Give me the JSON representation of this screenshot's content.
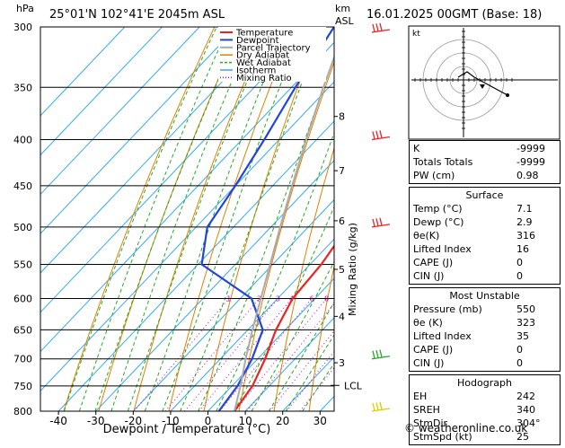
{
  "header": {
    "units": "hPa",
    "location": "25°01'N 102°41'E 2045m ASL",
    "km_label": "km",
    "asl_label": "ASL",
    "datetime": "16.01.2025 00GMT (Base: 18)"
  },
  "chart_data": {
    "type": "line",
    "title": "25°01'N 102°41'E 2045m ASL",
    "xlabel": "Dewpoint / Temperature (°C)",
    "ylabel": "hPa",
    "y2label": "Mixing Ratio (g/kg)",
    "xlim": [
      -45,
      35
    ],
    "ylim": [
      800,
      300
    ],
    "x_ticks": [
      "-40",
      "-30",
      "-20",
      "-10",
      "0",
      "10",
      "20",
      "30"
    ],
    "pressure_ticks": [
      "300",
      "350",
      "400",
      "450",
      "500",
      "550",
      "600",
      "650",
      "700",
      "750",
      "800"
    ],
    "pressure_values": [
      300,
      350,
      400,
      450,
      500,
      550,
      600,
      650,
      700,
      750,
      800
    ],
    "km_ticks": [
      {
        "p": 377,
        "label": "8"
      },
      {
        "p": 433,
        "label": "7"
      },
      {
        "p": 492,
        "label": "6"
      },
      {
        "p": 557,
        "label": "5"
      },
      {
        "p": 628,
        "label": "4"
      },
      {
        "p": 707,
        "label": "3"
      }
    ],
    "lcl": {
      "p": 749,
      "label": "LCL"
    },
    "mixing_ratio_labels": [
      {
        "r": 1,
        "label": "1"
      },
      {
        "r": 2,
        "label": "2"
      },
      {
        "r": 3,
        "label": "3"
      },
      {
        "r": 4,
        "label": "4"
      },
      {
        "r": 6,
        "label": "6"
      },
      {
        "r": 8,
        "label": "8"
      },
      {
        "r": 10,
        "label": "10"
      },
      {
        "r": 15,
        "label": "15"
      },
      {
        "r": 20,
        "label": "20"
      },
      {
        "r": 25,
        "label": "25"
      }
    ],
    "legend": [
      "Temperature",
      "Dewpoint",
      "Parcel Trajectory",
      "Dry Adiabat",
      "Wet Adiabat",
      "Isotherm",
      "Mixing Ratio"
    ],
    "legend_position": "top-left",
    "colors": {
      "temperature": "#ee2222",
      "dewpoint": "#2244dd",
      "parcel": "#aaaaaa",
      "dry": "#e08000",
      "wet": "#22aa22",
      "isotherm": "#33aaee",
      "mixing": "#cc00cc"
    },
    "series": [
      {
        "name": "Temperature",
        "points": [
          [
            800,
            7.1
          ],
          [
            750,
            5.5
          ],
          [
            700,
            2.0
          ],
          [
            650,
            -2.5
          ],
          [
            600,
            -6.0
          ],
          [
            550,
            -7.0
          ],
          [
            500,
            -9.5
          ],
          [
            450,
            -15.5
          ],
          [
            400,
            -23.0
          ],
          [
            350,
            -33.0
          ],
          [
            300,
            -41.0
          ]
        ]
      },
      {
        "name": "Dewpoint",
        "points": [
          [
            800,
            2.9
          ],
          [
            750,
            1.5
          ],
          [
            700,
            -1.5
          ],
          [
            650,
            -6.0
          ],
          [
            600,
            -17.0
          ],
          [
            550,
            -39.0
          ],
          [
            500,
            -47.0
          ],
          [
            450,
            -50.0
          ],
          [
            400,
            -54.0
          ],
          [
            350,
            -59.0
          ],
          [
            300,
            -64.0
          ]
        ]
      },
      {
        "name": "Parcel Trajectory",
        "points": [
          [
            800,
            7.1
          ],
          [
            750,
            2.3
          ],
          [
            700,
            -3.2
          ],
          [
            650,
            -8.8
          ],
          [
            600,
            -14.5
          ],
          [
            550,
            -20.7
          ],
          [
            500,
            -27.5
          ],
          [
            450,
            -34.8
          ],
          [
            400,
            -42.8
          ],
          [
            350,
            -51.5
          ],
          [
            300,
            -61.0
          ]
        ]
      }
    ]
  },
  "hodograph": {
    "label": "kt"
  },
  "winds": [
    {
      "p": 300,
      "color": "#ee2222"
    },
    {
      "p": 400,
      "color": "#ee2222"
    },
    {
      "p": 500,
      "color": "#ee2222"
    },
    {
      "p": 700,
      "color": "#22aa22"
    },
    {
      "p": 800,
      "color": "#ddcc00"
    }
  ],
  "indices": {
    "k_label": "K",
    "k": "-9999",
    "tt_label": "Totals Totals",
    "tt": "-9999",
    "pw_label": "PW (cm)",
    "pw": "0.98"
  },
  "surface": {
    "title": "Surface",
    "rows": [
      {
        "label": "Temp (°C)",
        "value": "7.1"
      },
      {
        "label": "Dewp (°C)",
        "value": "2.9"
      },
      {
        "label": "θe(K)",
        "value": "316"
      },
      {
        "label": "Lifted Index",
        "value": "16"
      },
      {
        "label": "CAPE (J)",
        "value": "0"
      },
      {
        "label": "CIN (J)",
        "value": "0"
      }
    ]
  },
  "most_unstable": {
    "title": "Most Unstable",
    "rows": [
      {
        "label": "Pressure (mb)",
        "value": "550"
      },
      {
        "label": "θe (K)",
        "value": "323"
      },
      {
        "label": "Lifted Index",
        "value": "35"
      },
      {
        "label": "CAPE (J)",
        "value": "0"
      },
      {
        "label": "CIN (J)",
        "value": "0"
      }
    ]
  },
  "hodo_table": {
    "title": "Hodograph",
    "rows": [
      {
        "label": "EH",
        "value": "242"
      },
      {
        "label": "SREH",
        "value": "340"
      },
      {
        "label": "StmDir",
        "value": "304°"
      },
      {
        "label": "StmSpd (kt)",
        "value": "25"
      }
    ]
  },
  "credit": "© weatheronline.co.uk"
}
